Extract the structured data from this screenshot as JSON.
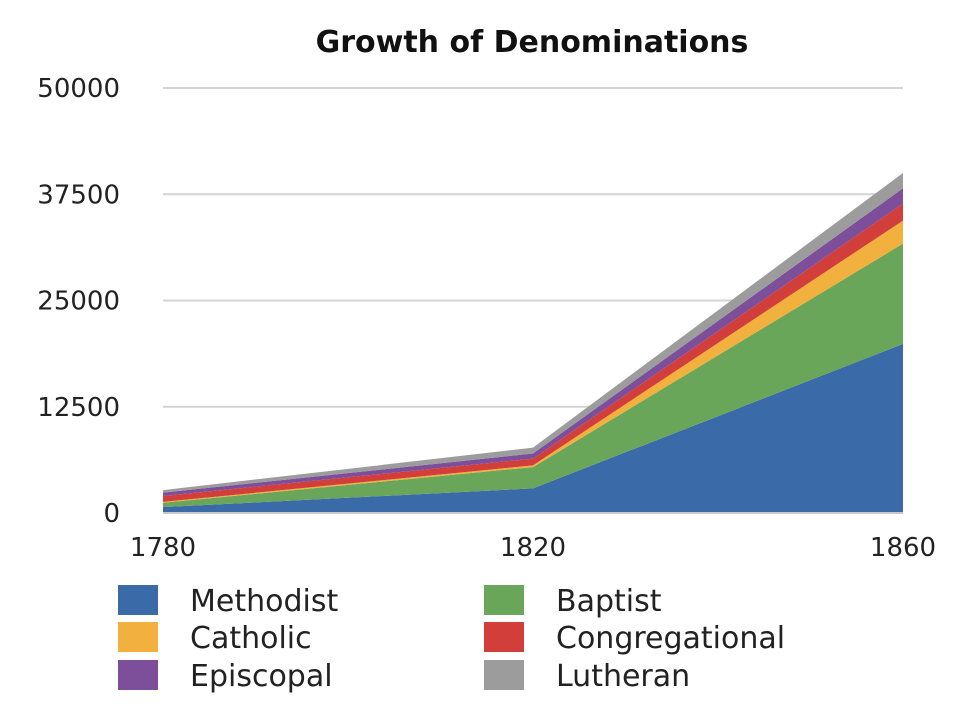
{
  "chart_data": {
    "type": "area",
    "stacked": true,
    "title": "Growth of Denominations",
    "xlabel": "",
    "ylabel": "",
    "x": [
      1780,
      1820,
      1860
    ],
    "x_tick_labels": [
      "1780",
      "1820",
      "1860"
    ],
    "y_ticks": [
      0,
      12500,
      25000,
      37500,
      50000
    ],
    "y_tick_labels": [
      "0",
      "12500",
      "25000",
      "37500",
      "50000"
    ],
    "ylim": [
      0,
      50000
    ],
    "grid": true,
    "legend_position": "bottom",
    "series": [
      {
        "name": "Methodist",
        "color": "#3a6aa8",
        "values": [
          700,
          2900,
          19900
        ]
      },
      {
        "name": "Baptist",
        "color": "#6aa659",
        "values": [
          500,
          2500,
          11800
        ]
      },
      {
        "name": "Catholic",
        "color": "#f2b13e",
        "values": [
          100,
          200,
          2700
        ]
      },
      {
        "name": "Congregational",
        "color": "#d23f3b",
        "values": [
          700,
          800,
          2000
        ]
      },
      {
        "name": "Episcopal",
        "color": "#7d4f9a",
        "values": [
          400,
          600,
          1800
        ]
      },
      {
        "name": "Lutheran",
        "color": "#9c9c9c",
        "values": [
          300,
          700,
          1800
        ]
      }
    ]
  }
}
